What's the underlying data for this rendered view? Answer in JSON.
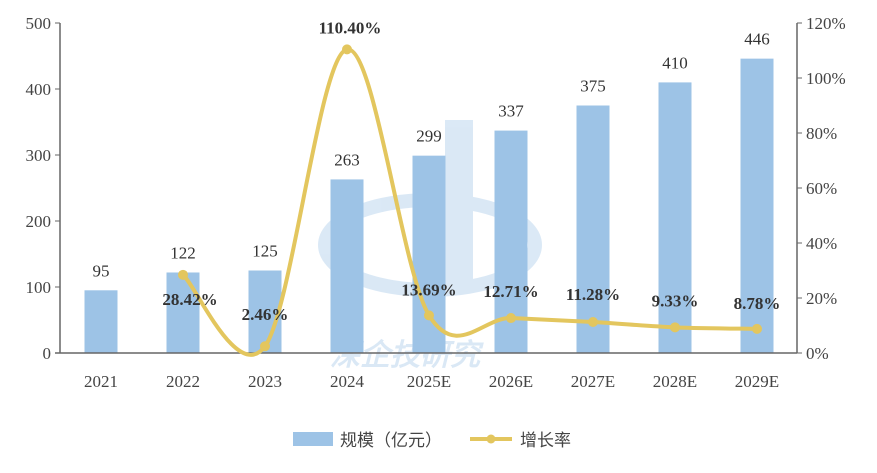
{
  "chart_data": {
    "type": "bar+line",
    "categories": [
      "2021",
      "2022",
      "2023",
      "2024",
      "2025E",
      "2026E",
      "2027E",
      "2028E",
      "2029E"
    ],
    "series": [
      {
        "name": "规模（亿元）",
        "type": "bar",
        "axis": "left",
        "color": "#9DC3E6",
        "values": [
          95,
          122,
          125,
          263,
          299,
          337,
          375,
          410,
          446
        ],
        "labels": [
          "95",
          "122",
          "125",
          "263",
          "299",
          "337",
          "375",
          "410",
          "446"
        ]
      },
      {
        "name": "增长率",
        "type": "line",
        "axis": "right",
        "color": "#E3C65E",
        "values": [
          null,
          28.42,
          2.46,
          110.4,
          13.69,
          12.71,
          11.28,
          9.33,
          8.78
        ],
        "labels": [
          "",
          "28.42%",
          "2.46%",
          "110.40%",
          "13.69%",
          "12.71%",
          "11.28%",
          "9.33%",
          "8.78%"
        ]
      }
    ],
    "y_left": {
      "range": [
        0,
        500
      ],
      "ticks": [
        "0",
        "100",
        "200",
        "300",
        "400",
        "500"
      ]
    },
    "y_right": {
      "range": [
        0,
        120
      ],
      "ticks": [
        "0%",
        "20%",
        "40%",
        "60%",
        "80%",
        "100%",
        "120%"
      ]
    },
    "grid": false,
    "legend": "bottom",
    "legend_labels": [
      "规模（亿元）",
      "增长率"
    ]
  }
}
